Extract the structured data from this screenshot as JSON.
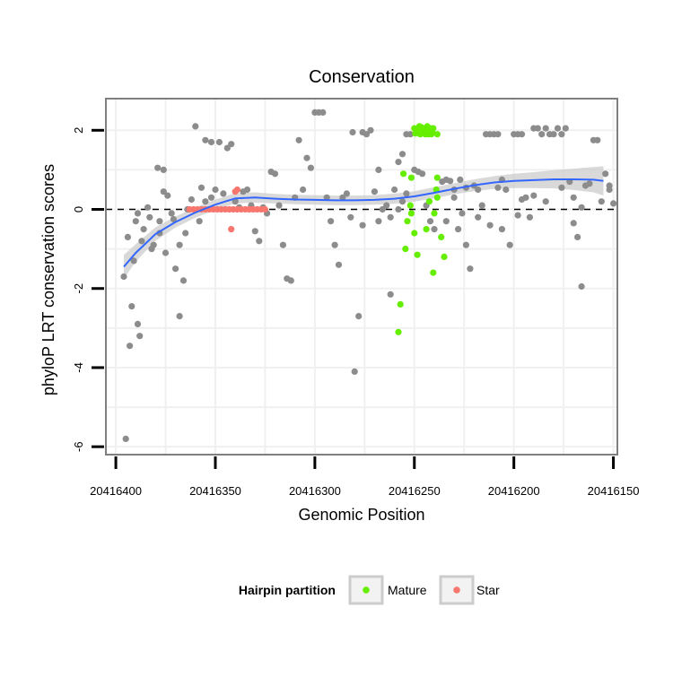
{
  "chart_data": {
    "type": "scatter",
    "title": "Conservation",
    "xlabel": "Genomic Position",
    "ylabel": "phyloP LRT conservation scores",
    "xlim": [
      20416405,
      20416148
    ],
    "ylim": [
      -6.2,
      2.8
    ],
    "x_reversed": true,
    "x_ticks": [
      20416400,
      20416350,
      20416300,
      20416250,
      20416200,
      20416150
    ],
    "x_tick_labels": [
      "20416400",
      "20416350",
      "20416300",
      "20416250",
      "20416200",
      "20416150"
    ],
    "y_ticks": [
      -6,
      -4,
      -2,
      0,
      2
    ],
    "y_tick_labels": [
      "-6",
      "-4",
      "-2",
      "0",
      "2"
    ],
    "grid": true,
    "reference_line": {
      "y": 0,
      "style": "dashed",
      "color": "#000000"
    },
    "legend": {
      "title": "Hairpin partition",
      "position": "bottom",
      "entries": [
        {
          "label": "Mature",
          "color": "#66ee00"
        },
        {
          "label": "Star",
          "color": "#f8766d"
        }
      ]
    },
    "colors": {
      "other": "#8c8c8c",
      "mature": "#66ee00",
      "star": "#f8766d",
      "smooth": "#3366ff",
      "band": "#cccccc"
    },
    "smooth": {
      "x": [
        20416396,
        20416390,
        20416380,
        20416370,
        20416360,
        20416350,
        20416340,
        20416330,
        20416320,
        20416310,
        20416300,
        20416290,
        20416280,
        20416270,
        20416260,
        20416250,
        20416240,
        20416230,
        20416220,
        20416210,
        20416200,
        20416190,
        20416180,
        20416170,
        20416160,
        20416155
      ],
      "y": [
        -1.45,
        -1.1,
        -0.62,
        -0.32,
        -0.08,
        0.12,
        0.28,
        0.3,
        0.27,
        0.25,
        0.24,
        0.23,
        0.23,
        0.24,
        0.27,
        0.33,
        0.42,
        0.52,
        0.61,
        0.68,
        0.72,
        0.74,
        0.76,
        0.76,
        0.75,
        0.72
      ],
      "band_half_width": [
        0.3,
        0.22,
        0.17,
        0.14,
        0.13,
        0.13,
        0.13,
        0.13,
        0.12,
        0.12,
        0.12,
        0.12,
        0.12,
        0.12,
        0.13,
        0.13,
        0.14,
        0.14,
        0.15,
        0.16,
        0.18,
        0.2,
        0.23,
        0.27,
        0.32,
        0.37
      ]
    },
    "series": [
      {
        "name": "Mature",
        "points": [
          [
            20416255.5,
            0.9
          ],
          [
            20416251.5,
            0.8
          ],
          [
            20416253.5,
            -0.3
          ],
          [
            20416252,
            0.1
          ],
          [
            20416251.5,
            -0.1
          ],
          [
            20416248.5,
            -1.15
          ],
          [
            20416254.5,
            -1.0
          ],
          [
            20416257,
            -2.4
          ],
          [
            20416258,
            -3.1
          ],
          [
            20416250,
            -0.6
          ],
          [
            20416244,
            -0.5
          ],
          [
            20416240.5,
            -1.6
          ],
          [
            20416242.5,
            0.2
          ],
          [
            20416239,
            0.5
          ],
          [
            20416238.5,
            0.8
          ],
          [
            20416238.5,
            0.3
          ],
          [
            20416240,
            -0.1
          ],
          [
            20416236.5,
            -0.7
          ],
          [
            20416235,
            -1.2
          ],
          [
            20416238.5,
            1.9
          ],
          [
            20416250,
            2.05
          ],
          [
            20416249,
            1.95
          ],
          [
            20416248,
            2.05
          ],
          [
            20416247,
            1.9
          ],
          [
            20416246,
            2.05
          ],
          [
            20416245,
            1.95
          ],
          [
            20416244,
            2.05
          ],
          [
            20416243,
            1.9
          ],
          [
            20416242,
            2.05
          ],
          [
            20416241,
            1.95
          ],
          [
            20416247.5,
            2.1
          ],
          [
            20416245.5,
            2.0
          ],
          [
            20416243.5,
            2.1
          ],
          [
            20416241.5,
            1.9
          ],
          [
            20416240.5,
            2.05
          ],
          [
            20416249.5,
            1.92
          ],
          [
            20416246.5,
            2.08
          ],
          [
            20416244.5,
            1.9
          ]
        ]
      },
      {
        "name": "Star",
        "points": [
          [
            20416363,
            0.0
          ],
          [
            20416361,
            0.0
          ],
          [
            20416359,
            0.0
          ],
          [
            20416357,
            0.0
          ],
          [
            20416355,
            0.0
          ],
          [
            20416353,
            0.0
          ],
          [
            20416351,
            0.0
          ],
          [
            20416349,
            0.0
          ],
          [
            20416347,
            0.0
          ],
          [
            20416345,
            0.0
          ],
          [
            20416343,
            0.0
          ],
          [
            20416341,
            0.0
          ],
          [
            20416339,
            0.0
          ],
          [
            20416337,
            0.0
          ],
          [
            20416335,
            0.0
          ],
          [
            20416333,
            0.0
          ],
          [
            20416331,
            0.0
          ],
          [
            20416329,
            0.0
          ],
          [
            20416327,
            0.0
          ],
          [
            20416325,
            0.0
          ],
          [
            20416340,
            0.45
          ],
          [
            20416339,
            0.5
          ],
          [
            20416342,
            -0.5
          ]
        ]
      },
      {
        "name": "",
        "points": [
          [
            20416395,
            -5.8
          ],
          [
            20416396,
            -1.7
          ],
          [
            20416393,
            -3.45
          ],
          [
            20416392,
            -2.45
          ],
          [
            20416389,
            -2.9
          ],
          [
            20416388,
            -3.2
          ],
          [
            20416394,
            -0.7
          ],
          [
            20416391,
            -1.3
          ],
          [
            20416390,
            -0.3
          ],
          [
            20416387,
            -0.8
          ],
          [
            20416384,
            0.05
          ],
          [
            20416383,
            -0.2
          ],
          [
            20416381,
            -0.9
          ],
          [
            20416379,
            1.05
          ],
          [
            20416376,
            1.0
          ],
          [
            20416378,
            -0.3
          ],
          [
            20416376,
            0.45
          ],
          [
            20416374,
            0.35
          ],
          [
            20416372,
            -0.1
          ],
          [
            20416370,
            -1.5
          ],
          [
            20416368,
            -2.7
          ],
          [
            20416366,
            -1.8
          ],
          [
            20416364,
            0.0
          ],
          [
            20416362,
            0.25
          ],
          [
            20416360,
            2.1
          ],
          [
            20416357,
            0.55
          ],
          [
            20416355,
            1.75
          ],
          [
            20416352,
            1.7
          ],
          [
            20416348,
            1.7
          ],
          [
            20416346,
            0.4
          ],
          [
            20416344,
            1.55
          ],
          [
            20416342,
            1.65
          ],
          [
            20416340,
            0.2
          ],
          [
            20416338,
            0.05
          ],
          [
            20416336,
            0.45
          ],
          [
            20416334,
            0.5
          ],
          [
            20416350,
            0.5
          ],
          [
            20416352,
            0.3
          ],
          [
            20416355,
            0.2
          ],
          [
            20416358,
            -0.3
          ],
          [
            20416365,
            -0.6
          ],
          [
            20416368,
            -0.9
          ],
          [
            20416371,
            -0.25
          ],
          [
            20416375,
            -1.1
          ],
          [
            20416378,
            -0.6
          ],
          [
            20416382,
            -1.0
          ],
          [
            20416386,
            -0.5
          ],
          [
            20416389,
            -0.1
          ],
          [
            20416332,
            0.1
          ],
          [
            20416330,
            -0.55
          ],
          [
            20416328,
            -0.8
          ],
          [
            20416326,
            0.05
          ],
          [
            20416324,
            -0.1
          ],
          [
            20416322,
            0.95
          ],
          [
            20416320,
            0.9
          ],
          [
            20416318,
            0.1
          ],
          [
            20416316,
            -0.9
          ],
          [
            20416314,
            -1.75
          ],
          [
            20416312,
            -1.8
          ],
          [
            20416310,
            0.3
          ],
          [
            20416308,
            1.75
          ],
          [
            20416306,
            0.5
          ],
          [
            20416304,
            1.3
          ],
          [
            20416302,
            1.05
          ],
          [
            20416300,
            2.45
          ],
          [
            20416298,
            2.45
          ],
          [
            20416296,
            2.45
          ],
          [
            20416294,
            0.3
          ],
          [
            20416292,
            -0.3
          ],
          [
            20416290,
            -0.9
          ],
          [
            20416288,
            -1.4
          ],
          [
            20416286,
            0.3
          ],
          [
            20416284,
            0.4
          ],
          [
            20416282,
            -0.2
          ],
          [
            20416280,
            -4.1
          ],
          [
            20416278,
            -2.7
          ],
          [
            20416276,
            -0.4
          ],
          [
            20416274,
            1.9
          ],
          [
            20416272,
            2.0
          ],
          [
            20416270,
            0.45
          ],
          [
            20416268,
            -0.3
          ],
          [
            20416266,
            0.0
          ],
          [
            20416264,
            0.1
          ],
          [
            20416262,
            -0.2
          ],
          [
            20416260,
            0.5
          ],
          [
            20416258,
            1.2
          ],
          [
            20416256,
            1.4
          ],
          [
            20416254,
            1.9
          ],
          [
            20416252,
            1.9
          ],
          [
            20416250,
            1.0
          ],
          [
            20416248,
            0.95
          ],
          [
            20416246,
            0.9
          ],
          [
            20416244,
            0.1
          ],
          [
            20416242,
            -0.3
          ],
          [
            20416240,
            -0.5
          ],
          [
            20416276,
            1.95
          ],
          [
            20416281,
            1.95
          ],
          [
            20416268,
            1.0
          ],
          [
            20416262,
            -2.15
          ],
          [
            20416258,
            0.0
          ],
          [
            20416256,
            0.2
          ],
          [
            20416254,
            0.4
          ],
          [
            20416236,
            0.7
          ],
          [
            20416234,
            0.75
          ],
          [
            20416232,
            0.72
          ],
          [
            20416230,
            0.5
          ],
          [
            20416228,
            -0.5
          ],
          [
            20416226,
            -0.1
          ],
          [
            20416224,
            0.55
          ],
          [
            20416222,
            -1.5
          ],
          [
            20416220,
            0.6
          ],
          [
            20416218,
            0.5
          ],
          [
            20416216,
            0.1
          ],
          [
            20416214,
            1.9
          ],
          [
            20416212,
            1.9
          ],
          [
            20416210,
            1.9
          ],
          [
            20416208,
            1.9
          ],
          [
            20416206,
            -0.5
          ],
          [
            20416204,
            0.5
          ],
          [
            20416202,
            -0.9
          ],
          [
            20416200,
            1.9
          ],
          [
            20416198,
            1.9
          ],
          [
            20416196,
            1.9
          ],
          [
            20416194,
            0.3
          ],
          [
            20416192,
            -0.2
          ],
          [
            20416190,
            2.05
          ],
          [
            20416188,
            2.05
          ],
          [
            20416186,
            1.9
          ],
          [
            20416184,
            2.05
          ],
          [
            20416182,
            1.9
          ],
          [
            20416180,
            1.9
          ],
          [
            20416178,
            2.05
          ],
          [
            20416176,
            1.9
          ],
          [
            20416174,
            2.05
          ],
          [
            20416172,
            0.7
          ],
          [
            20416170,
            0.3
          ],
          [
            20416168,
            -0.7
          ],
          [
            20416166,
            -1.95
          ],
          [
            20416164,
            0.6
          ],
          [
            20416162,
            0.65
          ],
          [
            20416160,
            1.75
          ],
          [
            20416158,
            1.75
          ],
          [
            20416156,
            0.2
          ],
          [
            20416154,
            0.9
          ],
          [
            20416152,
            0.6
          ],
          [
            20416150,
            0.15
          ],
          [
            20416152,
            0.5
          ],
          [
            20416166,
            0.05
          ],
          [
            20416170,
            -0.35
          ],
          [
            20416176,
            0.55
          ],
          [
            20416184,
            0.2
          ],
          [
            20416190,
            0.35
          ],
          [
            20416198,
            -0.15
          ],
          [
            20416206,
            0.75
          ],
          [
            20416212,
            -0.4
          ],
          [
            20416218,
            -0.2
          ],
          [
            20416224,
            -0.9
          ],
          [
            20416230,
            0.3
          ],
          [
            20416234,
            -0.3
          ],
          [
            20416227,
            0.75
          ],
          [
            20416208,
            0.55
          ],
          [
            20416196,
            0.25
          ]
        ]
      }
    ]
  }
}
